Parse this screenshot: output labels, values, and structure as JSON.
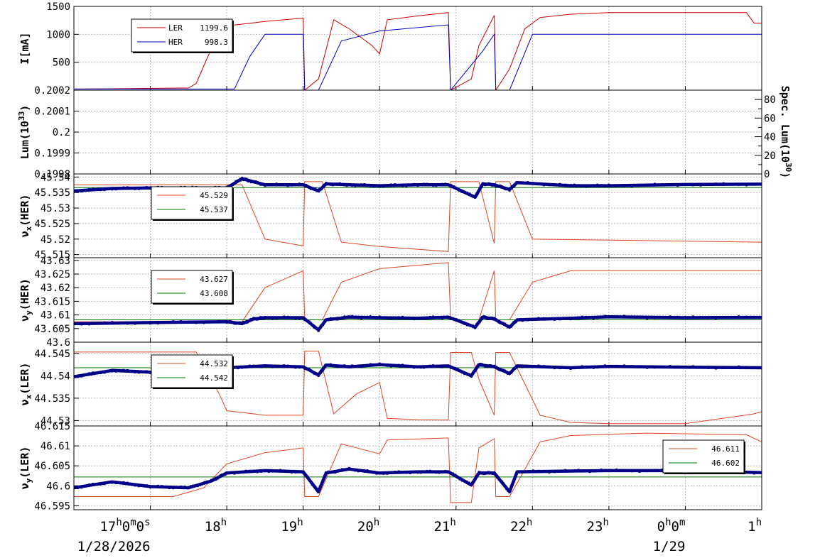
{
  "x_axis": {
    "ticks": [
      {
        "label": "17h0m0s",
        "hour": 17.0
      },
      {
        "label": "18h",
        "hour": 18.0
      },
      {
        "label": "19h",
        "hour": 19.0
      },
      {
        "label": "20h",
        "hour": 20.0
      },
      {
        "label": "21h",
        "hour": 21.0
      },
      {
        "label": "22h",
        "hour": 22.0
      },
      {
        "label": "23h",
        "hour": 23.0
      },
      {
        "label": "0h0m",
        "hour": 24.0
      },
      {
        "label": "1h",
        "hour": 25.0
      }
    ],
    "dates": [
      {
        "label": "1/28/2026",
        "hour": 17.0
      },
      {
        "label": "1/29",
        "hour": 24.0
      }
    ]
  },
  "chart_data": [
    {
      "type": "line",
      "ylabel": "I[mA]",
      "ylim": [
        0,
        1500
      ],
      "yticks": [
        "500",
        "1000",
        "1500"
      ],
      "grid": true,
      "legend_position": "top-left",
      "series": [
        {
          "name": "LER",
          "value_label": "1199.6",
          "color": "#cc0000",
          "x": [
            16.0,
            16.5,
            17.5,
            17.6,
            17.8,
            18.0,
            18.5,
            19.0,
            19.02,
            19.2,
            19.4,
            19.6,
            19.9,
            20.0,
            20.1,
            20.5,
            20.9,
            20.93,
            21.2,
            21.3,
            21.5,
            21.52,
            21.7,
            21.9,
            22.1,
            22.5,
            23.0,
            24.0,
            24.8,
            24.9,
            25.0
          ],
          "y": [
            20,
            25,
            40,
            120,
            750,
            1150,
            1230,
            1290,
            0,
            200,
            1260,
            1100,
            800,
            650,
            1260,
            1330,
            1390,
            0,
            200,
            800,
            1340,
            0,
            380,
            1100,
            1300,
            1360,
            1390,
            1390,
            1390,
            1200,
            1200
          ]
        },
        {
          "name": "HER",
          "value_label": "998.3",
          "color": "#0000cc",
          "x": [
            16.0,
            18.1,
            18.3,
            18.5,
            19.0,
            19.02,
            19.2,
            19.5,
            20.0,
            20.9,
            20.93,
            21.35,
            21.5,
            21.52,
            21.7,
            22.0,
            25.0
          ],
          "y": [
            20,
            20,
            600,
            1000,
            1000,
            0,
            0,
            880,
            1060,
            1170,
            0,
            700,
            1000,
            0,
            0,
            1000,
            1000
          ]
        }
      ]
    },
    {
      "type": "line",
      "ylabel": "Lum(10^33)",
      "ylim": [
        0.1998,
        0.2002
      ],
      "yticks": [
        "0.1998",
        "0.1999",
        "0.2",
        "0.2001",
        "0.2002"
      ],
      "y2label": "Spec. Lum(10^30)",
      "y2lim": [
        0,
        90
      ],
      "y2ticks": [
        "0",
        "20",
        "40",
        "60",
        "80"
      ],
      "grid": true,
      "series": []
    },
    {
      "type": "line",
      "ylabel": "νx(HER)",
      "ylim": [
        45.514,
        45.541
      ],
      "yticks": [
        "45.515",
        "45.52",
        "45.525",
        "45.53",
        "45.535",
        "45.54"
      ],
      "grid": true,
      "legend_position": "top-left",
      "series": [
        {
          "name": "",
          "value_label": "45.529",
          "color": "#dd4422",
          "x": [
            16.0,
            18.2,
            18.5,
            19.0,
            19.02,
            19.25,
            19.5,
            20.0,
            20.9,
            20.93,
            21.3,
            21.5,
            21.52,
            21.7,
            22.0,
            25.0
          ],
          "y": [
            45.5375,
            45.5375,
            45.52,
            45.5178,
            45.5385,
            45.5385,
            45.519,
            45.5176,
            45.516,
            45.5385,
            45.5385,
            45.5186,
            45.5385,
            45.5385,
            45.52,
            45.519
          ]
        },
        {
          "name": "",
          "value_label": "45.537",
          "color": "#007700",
          "x": [
            16.0,
            25.0
          ],
          "y": [
            45.5366,
            45.5366
          ]
        },
        {
          "name": "",
          "color": "#000088",
          "dots": true,
          "x": [
            16.0,
            16.5,
            17.0,
            17.5,
            18.0,
            18.2,
            18.3,
            18.5,
            19.0,
            19.2,
            19.3,
            19.6,
            20.0,
            20.5,
            20.9,
            21.25,
            21.35,
            21.5,
            21.7,
            21.8,
            22.5,
            23.0,
            24.0,
            25.0
          ],
          "y": [
            45.5355,
            45.5363,
            45.5365,
            45.5365,
            45.5365,
            45.5395,
            45.5388,
            45.5375,
            45.5375,
            45.5355,
            45.5378,
            45.5375,
            45.5372,
            45.5375,
            45.5375,
            45.5335,
            45.5378,
            45.5375,
            45.536,
            45.5382,
            45.5372,
            45.5372,
            45.5376,
            45.5377
          ]
        }
      ]
    },
    {
      "type": "line",
      "ylabel": "νy(HER)",
      "ylim": [
        43.6,
        43.631
      ],
      "yticks": [
        "43.6",
        "43.605",
        "43.61",
        "43.615",
        "43.62",
        "43.625",
        "43.63"
      ],
      "grid": true,
      "legend_position": "top-left",
      "series": [
        {
          "name": "",
          "value_label": "43.627",
          "color": "#dd4422",
          "x": [
            16.0,
            18.2,
            18.5,
            19.0,
            19.02,
            19.25,
            19.5,
            20.0,
            20.9,
            20.93,
            21.3,
            21.5,
            21.52,
            21.7,
            22.0,
            22.5,
            25.0
          ],
          "y": [
            43.6075,
            43.6075,
            43.62,
            43.6262,
            43.6082,
            43.6082,
            43.622,
            43.627,
            43.6292,
            43.6082,
            43.6082,
            43.6262,
            43.6082,
            43.6082,
            43.622,
            43.6262,
            43.6262
          ]
        },
        {
          "name": "",
          "value_label": "43.608",
          "color": "#007700",
          "x": [
            16.0,
            25.0
          ],
          "y": [
            43.6082,
            43.6082
          ]
        },
        {
          "name": "",
          "color": "#000088",
          "dots": true,
          "x": [
            16.0,
            17.0,
            18.0,
            18.2,
            18.35,
            18.5,
            19.0,
            19.2,
            19.3,
            19.6,
            20.0,
            20.5,
            20.9,
            21.25,
            21.35,
            21.5,
            21.7,
            21.8,
            22.5,
            23.0,
            24.0,
            25.0
          ],
          "y": [
            43.6068,
            43.6072,
            43.6075,
            43.6068,
            43.6085,
            43.609,
            43.609,
            43.6045,
            43.6082,
            43.6092,
            43.609,
            43.6088,
            43.6092,
            43.6055,
            43.6092,
            43.6085,
            43.6055,
            43.6082,
            43.6088,
            43.6093,
            43.609,
            43.6091
          ]
        }
      ]
    },
    {
      "type": "line",
      "ylabel": "νx(LER)",
      "ylim": [
        44.5288,
        44.5475
      ],
      "yticks": [
        "44.53",
        "44.535",
        "44.54",
        "44.545"
      ],
      "grid": true,
      "legend_position": "top-left",
      "series": [
        {
          "name": "",
          "value_label": "44.532",
          "color": "#dd4422",
          "x": [
            16.0,
            17.6,
            17.9,
            18.0,
            18.5,
            19.0,
            19.02,
            19.2,
            19.4,
            19.7,
            20.0,
            20.1,
            20.5,
            20.9,
            20.93,
            21.2,
            21.3,
            21.5,
            21.52,
            21.7,
            22.1,
            22.5,
            23.0,
            24.0,
            24.9,
            25.0
          ],
          "y": [
            44.5453,
            44.5453,
            44.536,
            44.5322,
            44.5312,
            44.5312,
            44.5455,
            44.5455,
            44.5315,
            44.536,
            44.5385,
            44.5305,
            44.5302,
            44.5301,
            44.5452,
            44.5452,
            44.5392,
            44.5312,
            44.5452,
            44.5452,
            44.5312,
            44.5296,
            44.5293,
            44.5293,
            44.5315,
            44.532
          ]
        },
        {
          "name": "",
          "value_label": "44.542",
          "color": "#007700",
          "x": [
            16.0,
            25.0
          ],
          "y": [
            44.5418,
            44.5418
          ]
        },
        {
          "name": "",
          "color": "#000088",
          "dots": true,
          "x": [
            16.0,
            16.5,
            17.0,
            17.5,
            18.0,
            18.5,
            19.0,
            19.2,
            19.3,
            19.6,
            20.0,
            20.5,
            20.9,
            21.2,
            21.3,
            21.5,
            21.7,
            21.8,
            22.5,
            23.0,
            24.0,
            25.0
          ],
          "y": [
            44.5398,
            44.5412,
            44.5408,
            44.5402,
            44.5418,
            44.5422,
            44.542,
            44.5402,
            44.5424,
            44.542,
            44.5425,
            44.542,
            44.5422,
            44.54,
            44.5425,
            44.542,
            44.5405,
            44.5422,
            44.5418,
            44.5421,
            44.5419,
            44.5418
          ]
        }
      ]
    },
    {
      "type": "line",
      "ylabel": "νy(LER)",
      "ylim": [
        46.594,
        46.615
      ],
      "yticks": [
        "46.595",
        "46.6",
        "46.605",
        "46.61",
        "46.615"
      ],
      "grid": true,
      "legend_position": "top-right",
      "series": [
        {
          "name": "",
          "value_label": "46.611",
          "color": "#dd4422",
          "x": [
            16.0,
            17.3,
            17.7,
            18.0,
            18.5,
            19.0,
            19.02,
            19.2,
            19.5,
            19.9,
            20.0,
            20.1,
            20.9,
            20.93,
            21.2,
            21.3,
            21.5,
            21.52,
            21.7,
            22.1,
            22.5,
            23.5,
            24.8,
            25.0
          ],
          "y": [
            46.5973,
            46.5973,
            46.5995,
            46.6055,
            46.6083,
            46.6095,
            46.5973,
            46.5973,
            46.6105,
            46.6085,
            46.608,
            46.6115,
            46.612,
            46.5958,
            46.5958,
            46.6095,
            46.6118,
            46.5973,
            46.5973,
            46.611,
            46.6126,
            46.6132,
            46.6128,
            46.611
          ]
        },
        {
          "name": "",
          "value_label": "46.602",
          "color": "#007700",
          "x": [
            16.0,
            25.0
          ],
          "y": [
            46.6022,
            46.6022
          ]
        },
        {
          "name": "",
          "color": "#000088",
          "dots": true,
          "x": [
            16.0,
            16.5,
            17.0,
            17.5,
            17.8,
            18.0,
            18.5,
            19.0,
            19.2,
            19.3,
            19.6,
            20.0,
            20.5,
            20.9,
            21.2,
            21.3,
            21.5,
            21.7,
            21.8,
            22.5,
            23.0,
            24.0,
            25.0
          ],
          "y": [
            46.5995,
            46.601,
            46.5998,
            46.5995,
            46.6012,
            46.6032,
            46.6038,
            46.6035,
            46.5985,
            46.6032,
            46.6042,
            46.6032,
            46.6035,
            46.6035,
            46.6002,
            46.6032,
            46.6032,
            46.5985,
            46.6035,
            46.6037,
            46.6038,
            46.6038,
            46.6033
          ]
        }
      ]
    }
  ]
}
